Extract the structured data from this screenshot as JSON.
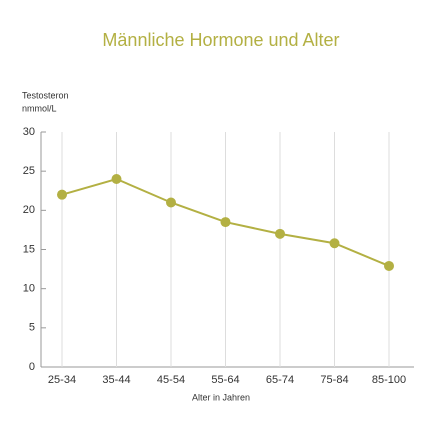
{
  "chart_data": {
    "type": "line",
    "title": "Männliche Hormone und Alter",
    "ylabel": [
      "Testosteron",
      "nmmol/L"
    ],
    "xlabel": "Alter in Jahren",
    "categories": [
      "25-34",
      "35-44",
      "45-54",
      "55-64",
      "65-74",
      "75-84",
      "85-100"
    ],
    "values": [
      22,
      24,
      21,
      18.5,
      17,
      15.8,
      12.9
    ],
    "color": "#b3b043",
    "ylim": [
      0,
      30
    ],
    "yticks": [
      0,
      5,
      10,
      15,
      20,
      25,
      30
    ],
    "grid": true
  }
}
